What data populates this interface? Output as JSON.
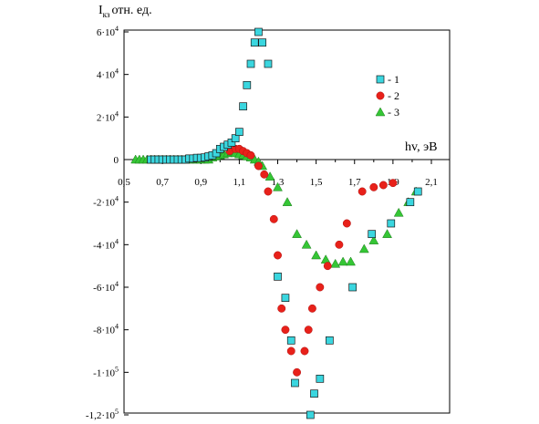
{
  "chart_data": {
    "type": "scatter",
    "title": "",
    "ylabel": "I",
    "ylabel_subscript": "кз",
    "ylabel_suffix": "отн. ед.",
    "xlabel": "hv, эВ",
    "xlim": [
      0.5,
      2.1
    ],
    "ylim": [
      -120000,
      65000
    ],
    "grid": false,
    "legend_position": "right",
    "x_ticks": [
      {
        "v": 0.5,
        "label": "0,5"
      },
      {
        "v": 0.7,
        "label": "0,7"
      },
      {
        "v": 0.9,
        "label": "0,9"
      },
      {
        "v": 1.1,
        "label": "1,1"
      },
      {
        "v": 1.3,
        "label": "1,3"
      },
      {
        "v": 1.5,
        "label": "1,5"
      },
      {
        "v": 1.7,
        "label": "1,7"
      },
      {
        "v": 1.9,
        "label": "1,9"
      },
      {
        "v": 2.1,
        "label": "2,1"
      }
    ],
    "y_ticks": [
      {
        "v": 60000,
        "label": "6·10",
        "exp": "4"
      },
      {
        "v": 40000,
        "label": "4·10",
        "exp": "4"
      },
      {
        "v": 20000,
        "label": "2·10",
        "exp": "4"
      },
      {
        "v": 0,
        "label": "0",
        "exp": ""
      },
      {
        "v": -20000,
        "label": "-2·10",
        "exp": "4"
      },
      {
        "v": -40000,
        "label": "-4·10",
        "exp": "4"
      },
      {
        "v": -60000,
        "label": "-6·10",
        "exp": "4"
      },
      {
        "v": -80000,
        "label": "-8·10",
        "exp": "4"
      },
      {
        "v": -100000,
        "label": "-1·10",
        "exp": "5"
      },
      {
        "v": -120000,
        "label": "-1,2·10",
        "exp": "5"
      }
    ],
    "series": [
      {
        "name": "1",
        "label": "- 1",
        "marker": "square",
        "color": "#3ad6df",
        "points": [
          [
            0.64,
            0
          ],
          [
            0.66,
            0
          ],
          [
            0.68,
            0
          ],
          [
            0.7,
            0
          ],
          [
            0.72,
            0
          ],
          [
            0.74,
            0
          ],
          [
            0.76,
            0
          ],
          [
            0.78,
            0
          ],
          [
            0.8,
            0
          ],
          [
            0.82,
            0
          ],
          [
            0.84,
            500
          ],
          [
            0.86,
            500
          ],
          [
            0.88,
            800
          ],
          [
            0.9,
            800
          ],
          [
            0.92,
            1000
          ],
          [
            0.94,
            1500
          ],
          [
            0.96,
            2000
          ],
          [
            0.98,
            3000
          ],
          [
            1.0,
            5000
          ],
          [
            1.02,
            6000
          ],
          [
            1.04,
            7000
          ],
          [
            1.06,
            8000
          ],
          [
            1.08,
            10000
          ],
          [
            1.1,
            13000
          ],
          [
            1.12,
            25000
          ],
          [
            1.14,
            35000
          ],
          [
            1.16,
            45000
          ],
          [
            1.18,
            55000
          ],
          [
            1.2,
            60000
          ],
          [
            1.22,
            55000
          ],
          [
            1.25,
            45000
          ],
          [
            1.3,
            -55000
          ],
          [
            1.34,
            -65000
          ],
          [
            1.37,
            -85000
          ],
          [
            1.39,
            -105000
          ],
          [
            1.47,
            -120000
          ],
          [
            1.49,
            -110000
          ],
          [
            1.52,
            -103000
          ],
          [
            1.57,
            -85000
          ],
          [
            1.69,
            -60000
          ],
          [
            1.79,
            -35000
          ],
          [
            1.89,
            -30000
          ],
          [
            1.99,
            -20000
          ],
          [
            2.03,
            -15000
          ]
        ]
      },
      {
        "name": "2",
        "label": "- 2",
        "marker": "circle",
        "color": "#e8211a",
        "points": [
          [
            1.05,
            4000
          ],
          [
            1.08,
            5000
          ],
          [
            1.1,
            5000
          ],
          [
            1.12,
            4000
          ],
          [
            1.14,
            3000
          ],
          [
            1.16,
            2000
          ],
          [
            1.2,
            -3000
          ],
          [
            1.23,
            -7000
          ],
          [
            1.25,
            -15000
          ],
          [
            1.28,
            -28000
          ],
          [
            1.3,
            -45000
          ],
          [
            1.32,
            -70000
          ],
          [
            1.34,
            -80000
          ],
          [
            1.37,
            -90000
          ],
          [
            1.4,
            -100000
          ],
          [
            1.44,
            -90000
          ],
          [
            1.46,
            -80000
          ],
          [
            1.48,
            -70000
          ],
          [
            1.52,
            -60000
          ],
          [
            1.56,
            -50000
          ],
          [
            1.62,
            -40000
          ],
          [
            1.66,
            -30000
          ],
          [
            1.74,
            -15000
          ],
          [
            1.8,
            -13000
          ],
          [
            1.85,
            -12000
          ],
          [
            1.9,
            -11000
          ]
        ]
      },
      {
        "name": "3",
        "label": "- 3",
        "marker": "triangle",
        "color": "#35c635",
        "points": [
          [
            0.56,
            0
          ],
          [
            0.58,
            0
          ],
          [
            0.6,
            0
          ],
          [
            0.62,
            0
          ],
          [
            0.64,
            0
          ],
          [
            0.66,
            0
          ],
          [
            0.68,
            0
          ],
          [
            0.7,
            0
          ],
          [
            0.72,
            0
          ],
          [
            0.74,
            0
          ],
          [
            0.76,
            0
          ],
          [
            0.78,
            0
          ],
          [
            0.8,
            0
          ],
          [
            0.82,
            0
          ],
          [
            0.84,
            0
          ],
          [
            0.86,
            0
          ],
          [
            0.88,
            0
          ],
          [
            0.9,
            0
          ],
          [
            0.92,
            0
          ],
          [
            0.94,
            0
          ],
          [
            0.96,
            1000
          ],
          [
            0.98,
            1500
          ],
          [
            1.0,
            2000
          ],
          [
            1.02,
            2500
          ],
          [
            1.04,
            3000
          ],
          [
            1.06,
            3500
          ],
          [
            1.08,
            3000
          ],
          [
            1.1,
            2500
          ],
          [
            1.12,
            2000
          ],
          [
            1.14,
            1500
          ],
          [
            1.16,
            1000
          ],
          [
            1.18,
            0
          ],
          [
            1.2,
            -1000
          ],
          [
            1.22,
            -3000
          ],
          [
            1.26,
            -8000
          ],
          [
            1.3,
            -13000
          ],
          [
            1.35,
            -20000
          ],
          [
            1.4,
            -35000
          ],
          [
            1.45,
            -40000
          ],
          [
            1.5,
            -45000
          ],
          [
            1.55,
            -47000
          ],
          [
            1.6,
            -49000
          ],
          [
            1.64,
            -48000
          ],
          [
            1.68,
            -48000
          ],
          [
            1.75,
            -42000
          ],
          [
            1.8,
            -38000
          ],
          [
            1.87,
            -35000
          ],
          [
            1.93,
            -25000
          ],
          [
            1.98,
            -20000
          ],
          [
            2.02,
            -15000
          ]
        ]
      }
    ]
  }
}
